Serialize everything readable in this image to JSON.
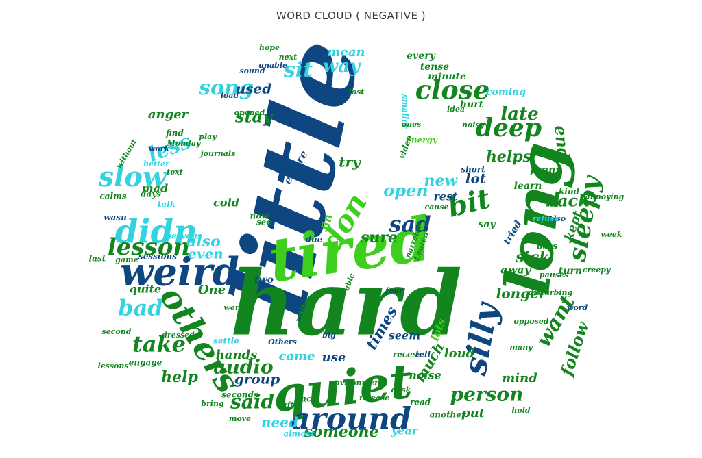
{
  "header": {
    "title": "WORD CLOUD ( NEGATIVE )"
  },
  "chart_data": {
    "type": "wordcloud",
    "title": "WORD CLOUD ( NEGATIVE )",
    "shape": "ellipse",
    "palette": {
      "dark_blue": "#0d4680",
      "green": "#12851f",
      "light_green": "#3ecf1e",
      "cyan": "#31d3e0"
    },
    "words": [
      {
        "text": "little",
        "weight": 100,
        "color": "#0d4680"
      },
      {
        "text": "hard",
        "weight": 95,
        "color": "#12851f"
      },
      {
        "text": "tired",
        "weight": 70,
        "color": "#3ecf1e"
      },
      {
        "text": "long",
        "weight": 68,
        "color": "#12851f"
      },
      {
        "text": "quiet",
        "weight": 58,
        "color": "#12851f"
      },
      {
        "text": "weird",
        "weight": 48,
        "color": "#0d4680"
      },
      {
        "text": "others",
        "weight": 44,
        "color": "#12851f"
      },
      {
        "text": "around",
        "weight": 42,
        "color": "#0d4680"
      },
      {
        "text": "silly",
        "weight": 40,
        "color": "#0d4680"
      },
      {
        "text": "didn",
        "weight": 38,
        "color": "#31d3e0"
      },
      {
        "text": "don",
        "weight": 36,
        "color": "#3ecf1e"
      },
      {
        "text": "close",
        "weight": 34,
        "color": "#12851f"
      },
      {
        "text": "sleepy",
        "weight": 32,
        "color": "#12851f"
      },
      {
        "text": "deep",
        "weight": 32,
        "color": "#12851f"
      },
      {
        "text": "bit",
        "weight": 32,
        "color": "#12851f"
      },
      {
        "text": "lesson",
        "weight": 30,
        "color": "#12851f"
      },
      {
        "text": "slow",
        "weight": 30,
        "color": "#31d3e0"
      },
      {
        "text": "song",
        "weight": 28,
        "color": "#31d3e0"
      },
      {
        "text": "bad",
        "weight": 28,
        "color": "#31d3e0"
      },
      {
        "text": "take",
        "weight": 26,
        "color": "#12851f"
      },
      {
        "text": "want",
        "weight": 26,
        "color": "#12851f"
      },
      {
        "text": "sad",
        "weight": 24,
        "color": "#0d4680"
      },
      {
        "text": "person",
        "weight": 24,
        "color": "#12851f"
      },
      {
        "text": "less",
        "weight": 24,
        "color": "#31d3e0"
      },
      {
        "text": "sit",
        "weight": 24,
        "color": "#31d3e0"
      },
      {
        "text": "audio",
        "weight": 22,
        "color": "#12851f"
      },
      {
        "text": "said",
        "weight": 22,
        "color": "#12851f"
      },
      {
        "text": "late",
        "weight": 22,
        "color": "#12851f"
      },
      {
        "text": "end",
        "weight": 22,
        "color": "#12851f"
      },
      {
        "text": "stay",
        "weight": 20,
        "color": "#12851f"
      },
      {
        "text": "way",
        "weight": 20,
        "color": "#31d3e0"
      },
      {
        "text": "open",
        "weight": 20,
        "color": "#31d3e0"
      },
      {
        "text": "new",
        "weight": 20,
        "color": "#31d3e0"
      },
      {
        "text": "follow",
        "weight": 20,
        "color": "#12851f"
      },
      {
        "text": "back",
        "weight": 20,
        "color": "#12851f"
      },
      {
        "text": "help",
        "weight": 18,
        "color": "#12851f"
      },
      {
        "text": "helps",
        "weight": 18,
        "color": "#12851f"
      },
      {
        "text": "someone",
        "weight": 18,
        "color": "#12851f"
      },
      {
        "text": "need",
        "weight": 18,
        "color": "#31d3e0"
      },
      {
        "text": "also",
        "weight": 18,
        "color": "#31d3e0"
      },
      {
        "text": "sure",
        "weight": 18,
        "color": "#12851f"
      },
      {
        "text": "used",
        "weight": 18,
        "color": "#0d4680"
      },
      {
        "text": "mean",
        "weight": 18,
        "color": "#31d3e0"
      },
      {
        "text": "lot",
        "weight": 18,
        "color": "#0d4680"
      },
      {
        "text": "kept",
        "weight": 18,
        "color": "#12851f"
      },
      {
        "text": "sick",
        "weight": 18,
        "color": "#12851f"
      },
      {
        "text": "times",
        "weight": 18,
        "color": "#0d4680"
      },
      {
        "text": "much",
        "weight": 16,
        "color": "#12851f"
      },
      {
        "text": "try",
        "weight": 16,
        "color": "#12851f"
      },
      {
        "text": "group",
        "weight": 16,
        "color": "#0d4680"
      },
      {
        "text": "use",
        "weight": 16,
        "color": "#0d4680"
      },
      {
        "text": "came",
        "weight": 16,
        "color": "#31d3e0"
      },
      {
        "text": "put",
        "weight": 16,
        "color": "#12851f"
      },
      {
        "text": "mind",
        "weight": 16,
        "color": "#12851f"
      },
      {
        "text": "loud",
        "weight": 16,
        "color": "#12851f"
      },
      {
        "text": "hands",
        "weight": 16,
        "color": "#12851f"
      },
      {
        "text": "away",
        "weight": 16,
        "color": "#12851f"
      },
      {
        "text": "longer",
        "weight": 16,
        "color": "#12851f"
      },
      {
        "text": "even",
        "weight": 16,
        "color": "#31d3e0"
      },
      {
        "text": "anger",
        "weight": 14,
        "color": "#12851f"
      },
      {
        "text": "mad",
        "weight": 14,
        "color": "#12851f"
      },
      {
        "text": "One",
        "weight": 14,
        "color": "#12851f"
      },
      {
        "text": "quite",
        "weight": 14,
        "color": "#12851f"
      },
      {
        "text": "fin",
        "weight": 14,
        "color": "#3ecf1e"
      },
      {
        "text": "seem",
        "weight": 14,
        "color": "#0d4680"
      },
      {
        "text": "noise",
        "weight": 14,
        "color": "#12851f"
      },
      {
        "text": "year",
        "weight": 14,
        "color": "#31d3e0"
      },
      {
        "text": "entire",
        "weight": 14,
        "color": "#0d4680"
      },
      {
        "text": "rest",
        "weight": 14,
        "color": "#0d4680"
      },
      {
        "text": "tried",
        "weight": 14,
        "color": "#0d4680"
      },
      {
        "text": "cold",
        "weight": 14,
        "color": "#12851f"
      },
      {
        "text": "lots",
        "weight": 14,
        "color": "#3ecf1e"
      },
      {
        "text": "every",
        "weight": 12,
        "color": "#12851f"
      },
      {
        "text": "tense",
        "weight": 12,
        "color": "#12851f"
      },
      {
        "text": "minute",
        "weight": 12,
        "color": "#12851f"
      },
      {
        "text": "coming",
        "weight": 12,
        "color": "#31d3e0"
      },
      {
        "text": "hurt",
        "weight": 12,
        "color": "#12851f"
      },
      {
        "text": "smaller",
        "weight": 10,
        "color": "#31d3e0"
      },
      {
        "text": "energy",
        "weight": 12,
        "color": "#3ecf1e"
      },
      {
        "text": "funny",
        "weight": 12,
        "color": "#12851f"
      },
      {
        "text": "short",
        "weight": 12,
        "color": "#0d4680"
      },
      {
        "text": "learn",
        "weight": 12,
        "color": "#12851f"
      },
      {
        "text": "kind",
        "weight": 12,
        "color": "#12851f"
      },
      {
        "text": "boys",
        "weight": 12,
        "color": "#12851f"
      },
      {
        "text": "turn",
        "weight": 12,
        "color": "#12851f"
      },
      {
        "text": "say",
        "weight": 12,
        "color": "#12851f"
      },
      {
        "text": "week",
        "weight": 10,
        "color": "#12851f"
      },
      {
        "text": "word",
        "weight": 10,
        "color": "#0d4680"
      },
      {
        "text": "creepy",
        "weight": 10,
        "color": "#12851f"
      },
      {
        "text": "calms",
        "weight": 12,
        "color": "#12851f"
      },
      {
        "text": "wasn",
        "weight": 12,
        "color": "#0d4680"
      },
      {
        "text": "talk",
        "weight": 12,
        "color": "#31d3e0"
      },
      {
        "text": "days",
        "weight": 12,
        "color": "#12851f"
      },
      {
        "text": "last",
        "weight": 12,
        "color": "#12851f"
      },
      {
        "text": "sessions",
        "weight": 12,
        "color": "#0d4680"
      },
      {
        "text": "game",
        "weight": 12,
        "color": "#12851f"
      },
      {
        "text": "nervous",
        "weight": 12,
        "color": "#31d3e0"
      },
      {
        "text": "now",
        "weight": 12,
        "color": "#12851f"
      },
      {
        "text": "see",
        "weight": 12,
        "color": "#12851f"
      },
      {
        "text": "due",
        "weight": 12,
        "color": "#0d4680"
      },
      {
        "text": "two",
        "weight": 12,
        "color": "#0d4680"
      },
      {
        "text": "recess",
        "weight": 12,
        "color": "#12851f"
      },
      {
        "text": "face",
        "weight": 12,
        "color": "#12851f"
      },
      {
        "text": "bring",
        "weight": 10,
        "color": "#12851f"
      },
      {
        "text": "move",
        "weight": 10,
        "color": "#12851f"
      },
      {
        "text": "almost",
        "weight": 12,
        "color": "#31d3e0"
      },
      {
        "text": "seconds",
        "weight": 12,
        "color": "#12851f"
      },
      {
        "text": "settle",
        "weight": 12,
        "color": "#31d3e0"
      },
      {
        "text": "engage",
        "weight": 12,
        "color": "#12851f"
      },
      {
        "text": "second",
        "weight": 10,
        "color": "#12851f"
      },
      {
        "text": "tell",
        "weight": 12,
        "color": "#0d4680"
      },
      {
        "text": "read",
        "weight": 12,
        "color": "#12851f"
      },
      {
        "text": "another",
        "weight": 12,
        "color": "#12851f"
      },
      {
        "text": "hold",
        "weight": 10,
        "color": "#12851f"
      },
      {
        "text": "release",
        "weight": 10,
        "color": "#12851f"
      },
      {
        "text": "video",
        "weight": 12,
        "color": "#12851f"
      },
      {
        "text": "journals",
        "weight": 10,
        "color": "#12851f"
      },
      {
        "text": "Monday",
        "weight": 10,
        "color": "#12851f"
      },
      {
        "text": "play",
        "weight": 10,
        "color": "#12851f"
      },
      {
        "text": "work",
        "weight": 10,
        "color": "#0d4680"
      },
      {
        "text": "find",
        "weight": 12,
        "color": "#12851f"
      },
      {
        "text": "better",
        "weight": 10,
        "color": "#31d3e0"
      },
      {
        "text": "without",
        "weight": 10,
        "color": "#12851f"
      },
      {
        "text": "sound",
        "weight": 10,
        "color": "#0d4680"
      },
      {
        "text": "unable",
        "weight": 10,
        "color": "#0d4680"
      },
      {
        "text": "load",
        "weight": 10,
        "color": "#0d4680"
      },
      {
        "text": "opened",
        "weight": 10,
        "color": "#12851f"
      },
      {
        "text": "text",
        "weight": 10,
        "color": "#12851f"
      },
      {
        "text": "narrator",
        "weight": 10,
        "color": "#12851f"
      },
      {
        "text": "Lauren",
        "weight": 10,
        "color": "#12851f"
      },
      {
        "text": "four",
        "weight": 10,
        "color": "#0d4680"
      },
      {
        "text": "lessons",
        "weight": 10,
        "color": "#12851f"
      },
      {
        "text": "dressed",
        "weight": 10,
        "color": "#12851f"
      },
      {
        "text": "environment",
        "weight": 10,
        "color": "#12851f"
      },
      {
        "text": "Others",
        "weight": 10,
        "color": "#0d4680"
      },
      {
        "text": "big",
        "weight": 10,
        "color": "#0d4680"
      },
      {
        "text": "write",
        "weight": 10,
        "color": "#0d4680"
      },
      {
        "text": "weren",
        "weight": 10,
        "color": "#12851f"
      },
      {
        "text": "able",
        "weight": 10,
        "color": "#12851f"
      },
      {
        "text": "opposed",
        "weight": 10,
        "color": "#12851f"
      },
      {
        "text": "pauses",
        "weight": 10,
        "color": "#12851f"
      },
      {
        "text": "disturbing",
        "weight": 10,
        "color": "#12851f"
      },
      {
        "text": "many",
        "weight": 10,
        "color": "#12851f"
      },
      {
        "text": "annoying",
        "weight": 10,
        "color": "#12851f"
      },
      {
        "text": "Also",
        "weight": 10,
        "color": "#0d4680"
      },
      {
        "text": "hope",
        "weight": 10,
        "color": "#12851f"
      },
      {
        "text": "refuse",
        "weight": 10,
        "color": "#31d3e0"
      },
      {
        "text": "noisy",
        "weight": 10,
        "color": "#12851f"
      },
      {
        "text": "idea",
        "weight": 10,
        "color": "#12851f"
      },
      {
        "text": "next",
        "weight": 10,
        "color": "#12851f"
      },
      {
        "text": "lost",
        "weight": 10,
        "color": "#12851f"
      },
      {
        "text": "ones",
        "weight": 10,
        "color": "#12851f"
      },
      {
        "text": "cause",
        "weight": 10,
        "color": "#12851f"
      },
      {
        "text": "desk",
        "weight": 10,
        "color": "#12851f"
      },
      {
        "text": "left",
        "weight": 10,
        "color": "#12851f"
      }
    ]
  }
}
